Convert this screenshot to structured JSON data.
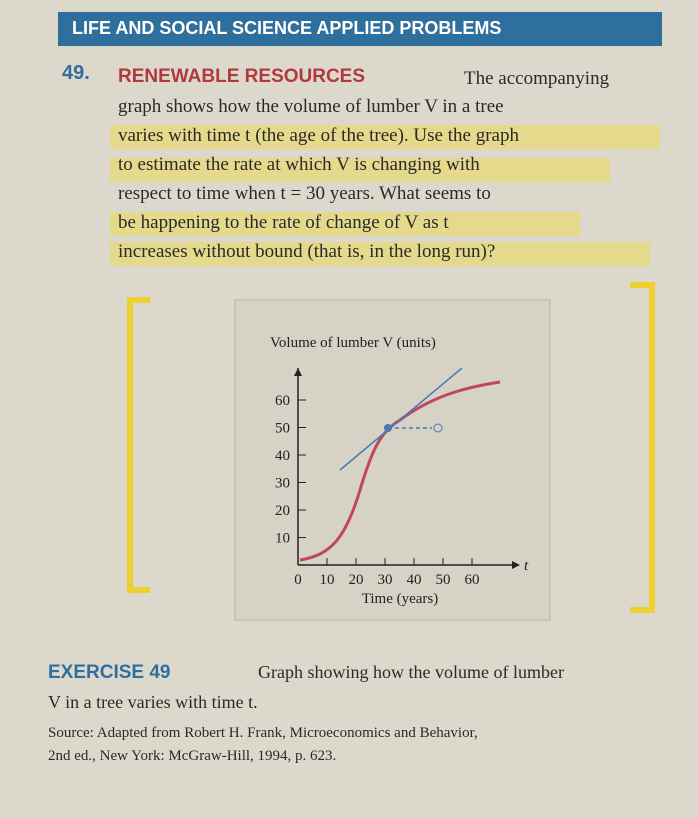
{
  "header": {
    "title": "LIFE AND SOCIAL SCIENCE APPLIED PROBLEMS"
  },
  "problem": {
    "number": "49.",
    "heading": "RENEWABLE RESOURCES",
    "first_line": "The accompanying",
    "lines": [
      "graph shows how the volume of lumber V in a tree",
      "varies with time t (the age of the tree). Use the graph",
      "to estimate the rate at which V is changing with",
      "respect to time when t = 30 years. What seems to",
      "be happening to the rate of change of V as t",
      "increases without bound (that is, in the long run)?"
    ]
  },
  "graph": {
    "y_label": "Volume of lumber V (units)",
    "y_ticks": [
      "60",
      "50",
      "40",
      "30",
      "20",
      "10"
    ],
    "x_ticks": [
      "0",
      "10",
      "20",
      "30",
      "40",
      "50",
      "60"
    ],
    "x_var": "t",
    "x_label": "Time (years)"
  },
  "caption": {
    "label": "EXERCISE 49",
    "text_first": "Graph showing how the volume of lumber",
    "text_second": "V in a tree varies with time t.",
    "source_lines": [
      "Source: Adapted from Robert H. Frank, Microeconomics and Behavior,",
      "2nd ed., New York: McGraw-Hill, 1994, p. 623."
    ]
  }
}
